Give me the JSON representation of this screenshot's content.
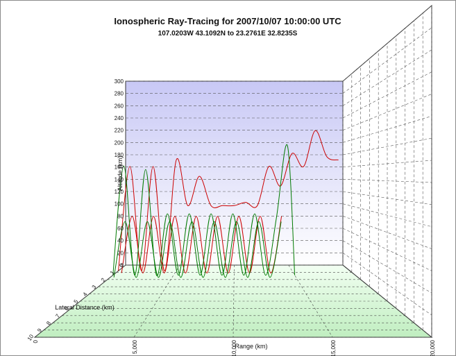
{
  "window": {
    "frame_color": "#8a8a8a"
  },
  "chart_data": {
    "type": "line",
    "title": "Ionospheric Ray-Tracing for 2007/10/07 10:00:00 UTC",
    "subtitle": "107.0203W 43.1092N to  23.2761E 32.8235S",
    "xlabel": "Range (km)",
    "ylabel": "Altitude (km)",
    "zlabel": "Lateral Distance (km)",
    "xlim": [
      0,
      20000
    ],
    "ylim": [
      0,
      300
    ],
    "zlim": [
      0,
      10
    ],
    "x_ticks": [
      "0",
      "5,000",
      "10,000",
      "15,000",
      "20,000"
    ],
    "y_ticks": [
      "0",
      "20",
      "40",
      "60",
      "80",
      "100",
      "120",
      "140",
      "160",
      "180",
      "200",
      "220",
      "240",
      "260",
      "280",
      "300"
    ],
    "z_ticks": [
      "10",
      "9",
      "8",
      "7",
      "6",
      "5",
      "4",
      "3",
      "2",
      "1",
      "0"
    ],
    "grid": true,
    "colors": {
      "wall": "#c8c8f5",
      "floor": "#c0eec0",
      "red": "#cc0000",
      "green": "#007a00"
    },
    "series": [
      {
        "color": "red",
        "x": [
          0,
          1000,
          2000,
          3000,
          4000,
          5000,
          6000,
          7000,
          8000,
          9000,
          10000,
          11000,
          12000,
          13000,
          14000,
          15000,
          16000,
          17000,
          18000,
          19000
        ],
        "y": [
          0,
          160,
          0,
          160,
          0,
          170,
          100,
          145,
          100,
          100,
          100,
          105,
          100,
          160,
          130,
          180,
          160,
          215,
          175,
          170
        ]
      },
      {
        "color": "red",
        "x": [
          500,
          1400,
          2300,
          3200,
          4100,
          5000,
          5900,
          6800,
          7700,
          8600,
          9500,
          10400,
          11300,
          12200,
          13100,
          14000
        ],
        "y": [
          0,
          85,
          0,
          85,
          0,
          85,
          0,
          85,
          0,
          85,
          0,
          85,
          0,
          85,
          0,
          85
        ]
      },
      {
        "color": "green",
        "x": [
          0,
          900,
          1800,
          2700,
          3600,
          4500,
          5400,
          6300,
          7200,
          8100,
          9000,
          9900,
          10800,
          11700,
          12600,
          13500,
          14400,
          15000
        ],
        "y": [
          0,
          160,
          0,
          155,
          0,
          90,
          0,
          90,
          0,
          90,
          0,
          90,
          0,
          90,
          0,
          85,
          190,
          0
        ]
      },
      {
        "color": "green",
        "x": [
          300,
          1200,
          2100,
          3000,
          3900,
          4800,
          5700,
          6600,
          7500,
          8400,
          9300,
          10200,
          11100,
          12000,
          12900,
          13800
        ],
        "y": [
          0,
          80,
          0,
          80,
          0,
          80,
          0,
          80,
          0,
          80,
          0,
          80,
          0,
          80,
          0,
          80
        ]
      }
    ]
  }
}
